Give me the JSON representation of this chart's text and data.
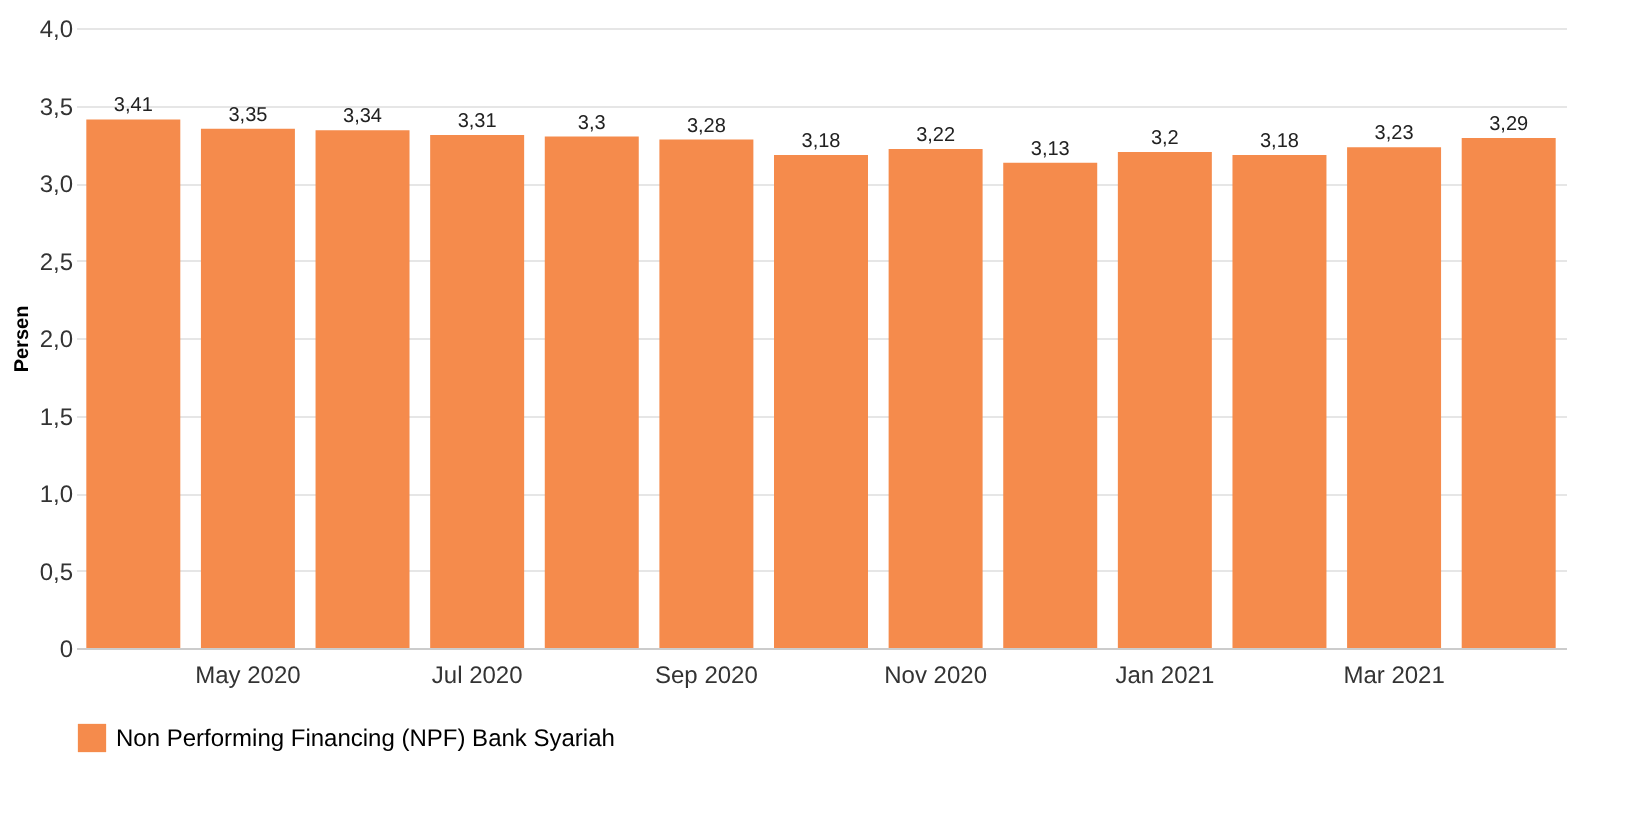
{
  "chart_data": {
    "type": "bar",
    "ylabel": "Persen",
    "categories": [
      null,
      "May 2020",
      null,
      "Jul 2020",
      null,
      "Sep 2020",
      null,
      "Nov 2020",
      null,
      "Jan 2021",
      null,
      "Mar 2021",
      null
    ],
    "series": [
      {
        "name": "Non Performing Financing (NPF) Bank Syariah",
        "color": "#f58b4c",
        "values": [
          3.41,
          3.35,
          3.34,
          3.31,
          3.3,
          3.28,
          3.18,
          3.22,
          3.13,
          3.2,
          3.18,
          3.23,
          3.29
        ],
        "value_labels": [
          "3,41",
          "3,35",
          "3,34",
          "3,31",
          "3,3",
          "3,28",
          "3,18",
          "3,22",
          "3,13",
          "3,2",
          "3,18",
          "3,23",
          "3,29"
        ]
      }
    ],
    "ylim": [
      0,
      4
    ],
    "yticks": [
      0,
      {
        "value": 0.5,
        "label": "0,5"
      },
      {
        "value": 1,
        "label": "1,0"
      },
      {
        "value": 1.5,
        "label": "1,5"
      },
      {
        "value": 2,
        "label": "2,0"
      },
      {
        "value": 2.5,
        "label": "2,5"
      },
      {
        "value": 3,
        "label": "3,0"
      },
      {
        "value": 3.5,
        "label": "3,5"
      },
      {
        "value": 4,
        "label": "4,0"
      }
    ],
    "grid": "y",
    "legend": "bottom left"
  }
}
